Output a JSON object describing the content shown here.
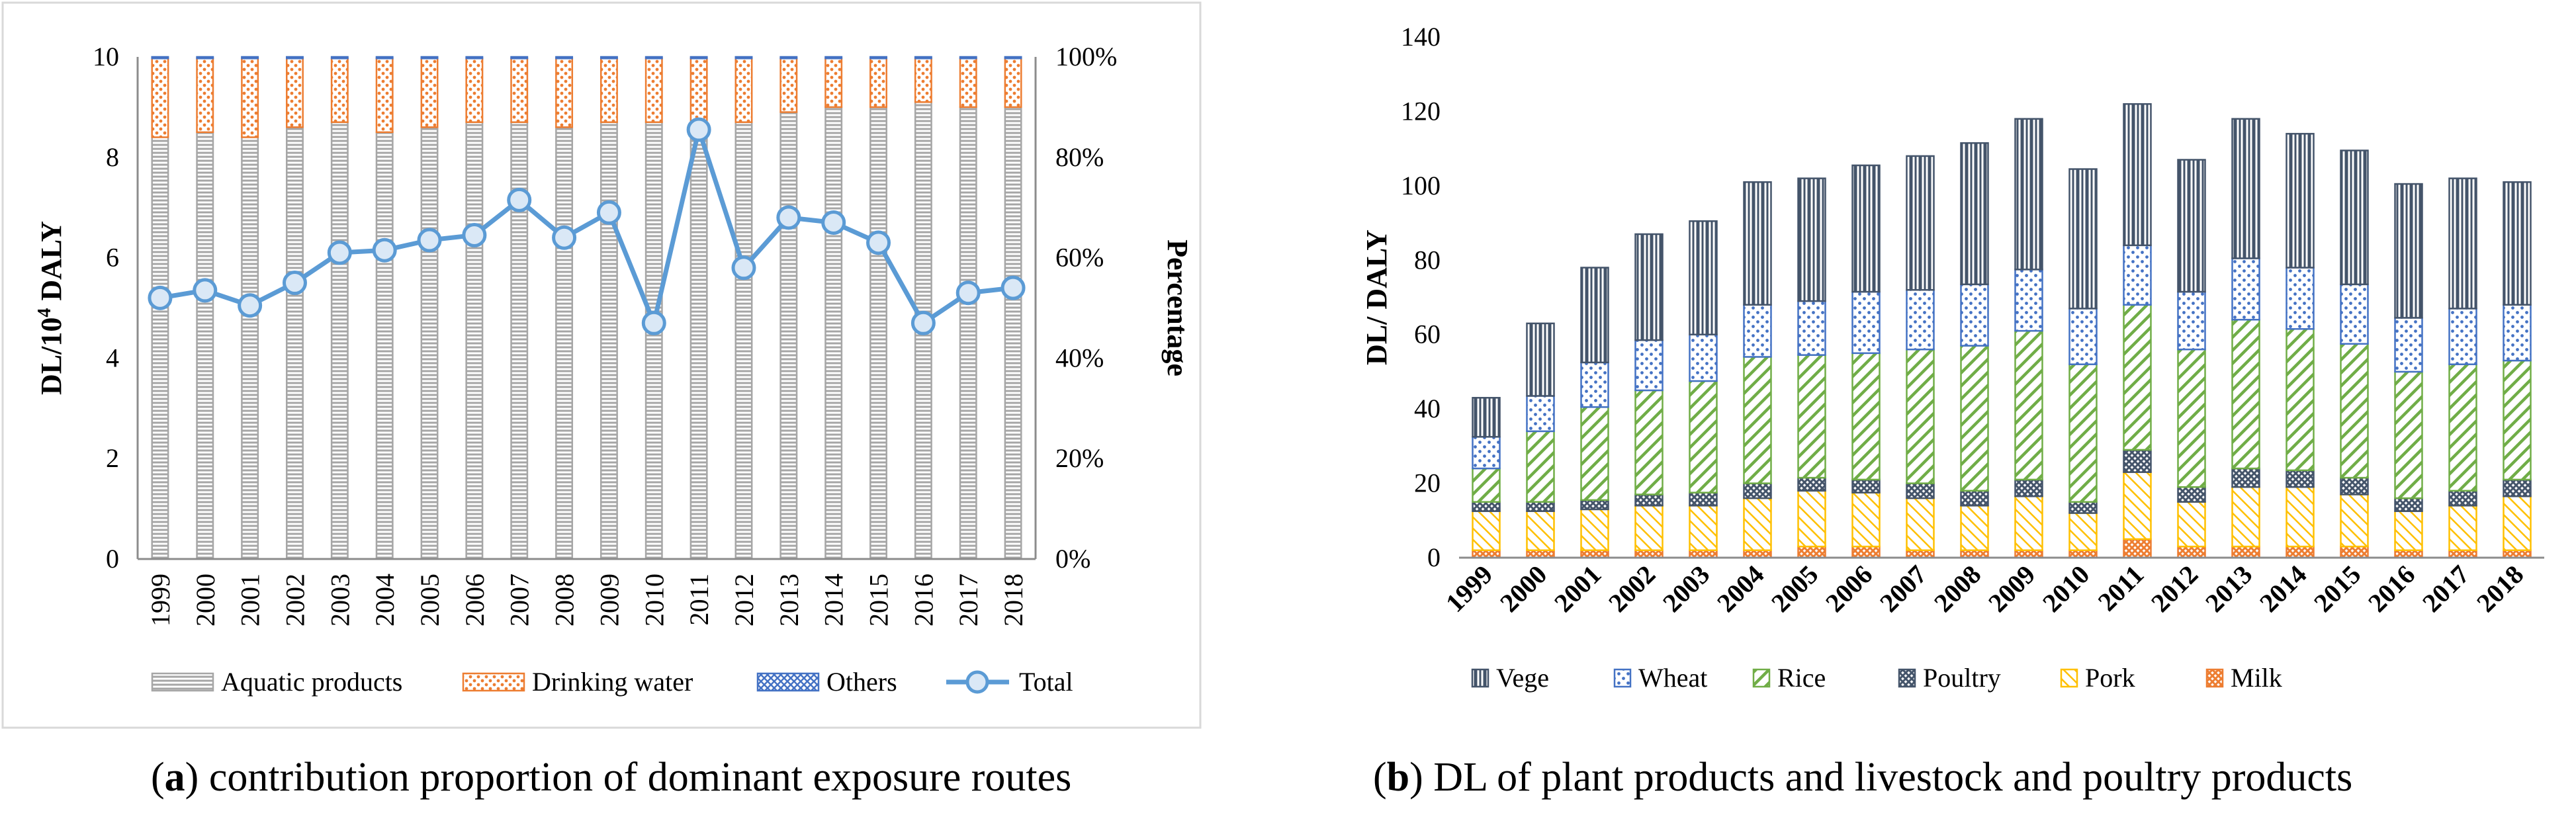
{
  "chart_data": [
    {
      "type": "bar",
      "stacked": true,
      "percent_stacked": true,
      "categories": [
        "1999",
        "2000",
        "2001",
        "2002",
        "2003",
        "2004",
        "2005",
        "2006",
        "2007",
        "2008",
        "2009",
        "2010",
        "2011",
        "2012",
        "2013",
        "2014",
        "2015",
        "2016",
        "2017",
        "2018"
      ],
      "series": [
        {
          "name": "Aquatic products",
          "values": [
            84,
            85,
            84,
            86,
            87,
            85,
            86,
            87,
            87,
            86,
            87,
            87,
            87,
            87,
            89,
            90,
            90,
            91,
            90,
            90
          ],
          "color": "#a6a6a6",
          "pattern": "hlines"
        },
        {
          "name": "Drinking water",
          "values": [
            15.7,
            14.7,
            15.7,
            13.7,
            12.7,
            14.7,
            13.7,
            12.7,
            12.7,
            13.7,
            12.7,
            12.7,
            12.7,
            12.7,
            10.7,
            9.7,
            9.7,
            8.7,
            9.7,
            9.7
          ],
          "color": "#ed7d31",
          "pattern": "dots"
        },
        {
          "name": "Others",
          "values": [
            0.3,
            0.3,
            0.3,
            0.3,
            0.3,
            0.3,
            0.3,
            0.3,
            0.3,
            0.3,
            0.3,
            0.3,
            0.3,
            0.3,
            0.3,
            0.3,
            0.3,
            0.3,
            0.3,
            0.3
          ],
          "color": "#4472c4",
          "pattern": "cross"
        }
      ],
      "line": {
        "name": "Total",
        "values": [
          5.2,
          5.35,
          5.05,
          5.5,
          6.1,
          6.15,
          6.35,
          6.45,
          7.15,
          6.4,
          6.9,
          4.7,
          8.55,
          5.8,
          6.8,
          6.7,
          6.3,
          4.7,
          5.3,
          5.4
        ],
        "color": "#5b9bd5"
      },
      "ylabel": "DL/10",
      "ylabel_sup": "4",
      "ylabel_tail": " DALY",
      "y2label": "Percentage",
      "ylim": [
        0,
        10
      ],
      "yticks": [
        "0",
        "2",
        "4",
        "6",
        "8",
        "10"
      ],
      "y2ticks": [
        "0%",
        "20%",
        "40%",
        "60%",
        "80%",
        "100%"
      ],
      "legend": [
        {
          "label": "Aquatic products",
          "kind": "bar",
          "series": 0
        },
        {
          "label": "Drinking water",
          "kind": "bar",
          "series": 1
        },
        {
          "label": "Others",
          "kind": "bar",
          "series": 2
        },
        {
          "label": "Total",
          "kind": "line"
        }
      ],
      "caption_letter": "a",
      "caption_text": " contribution proportion of dominant exposure routes"
    },
    {
      "type": "bar",
      "stacked": true,
      "categories": [
        "1999",
        "2000",
        "2001",
        "2002",
        "2003",
        "2004",
        "2005",
        "2006",
        "2007",
        "2008",
        "2009",
        "2010",
        "2011",
        "2012",
        "2013",
        "2014",
        "2015",
        "2016",
        "2017",
        "2018"
      ],
      "series": [
        {
          "name": "Milk",
          "values": [
            2,
            2,
            2,
            2,
            2,
            2,
            3,
            3,
            2,
            2,
            2,
            2,
            5,
            3,
            3,
            3,
            3,
            2,
            2,
            2
          ],
          "color": "#ed7d31",
          "pattern": "cross"
        },
        {
          "name": "Pork",
          "values": [
            10.5,
            10.5,
            11,
            12,
            12,
            14,
            15,
            14.5,
            14,
            12,
            14.5,
            10,
            18,
            12,
            16,
            16,
            14,
            10.5,
            12,
            14.5
          ],
          "color": "#ffc000",
          "pattern": "bdiag"
        },
        {
          "name": "Poultry",
          "values": [
            2.5,
            2.5,
            2.5,
            3,
            3.5,
            4,
            3.5,
            3.5,
            4,
            4,
            4.5,
            3,
            6,
            4,
            5,
            4.5,
            4.5,
            3.5,
            4,
            4.5
          ],
          "color": "#44546a",
          "pattern": "cross"
        },
        {
          "name": "Rice",
          "values": [
            9,
            19,
            25,
            28,
            30,
            34,
            33,
            34,
            36,
            39,
            40,
            37,
            39,
            37,
            40,
            38,
            36,
            34,
            34,
            32
          ],
          "color": "#70ad47",
          "pattern": "fdiag"
        },
        {
          "name": "Wheat",
          "values": [
            8.5,
            9.5,
            12,
            13.5,
            12.5,
            14,
            14.5,
            16.5,
            16,
            16.5,
            16.5,
            15,
            16,
            15.5,
            16.5,
            16.5,
            16,
            14.5,
            15,
            15
          ],
          "color": "#4472c4",
          "pattern": "dots"
        },
        {
          "name": "Vege",
          "values": [
            10.5,
            19.5,
            25.5,
            28.5,
            30.5,
            33,
            33,
            34,
            36,
            38,
            40.5,
            37.5,
            38,
            35.5,
            37.5,
            36,
            36,
            36,
            35,
            33
          ],
          "color": "#44546a",
          "pattern": "vlines"
        }
      ],
      "ylabel": "DL/ DALY",
      "ylim": [
        0,
        140
      ],
      "yticks": [
        "0",
        "20",
        "40",
        "60",
        "80",
        "100",
        "120",
        "140"
      ],
      "legend": [
        {
          "label": "Vege",
          "series": 5
        },
        {
          "label": "Wheat",
          "series": 4
        },
        {
          "label": "Rice",
          "series": 3
        },
        {
          "label": "Poultry",
          "series": 2
        },
        {
          "label": "Pork",
          "series": 1
        },
        {
          "label": "Milk",
          "series": 0
        }
      ],
      "caption_letter": "b",
      "caption_text": " DL of plant products and livestock and poultry products"
    }
  ]
}
